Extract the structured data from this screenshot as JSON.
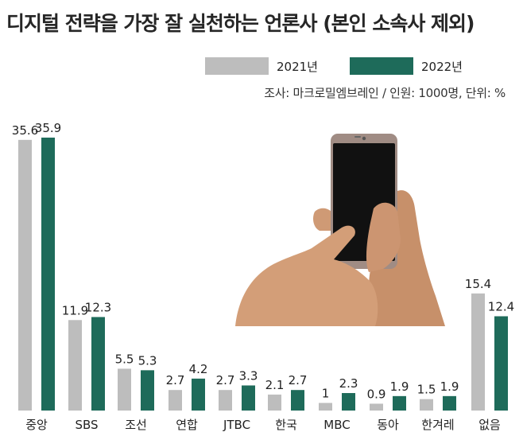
{
  "chart_data": {
    "type": "bar",
    "title": "디지털 전략을 가장 잘 실천하는 언론사 (본인 소속사 제외)",
    "note": "조사: 마크로밀엠브레인 / 인원: 1000명, 단위: %",
    "categories": [
      "중앙",
      "SBS",
      "조선",
      "연합",
      "JTBC",
      "한국",
      "MBC",
      "동아",
      "한겨레",
      "없음"
    ],
    "series": [
      {
        "name": "2021년",
        "color": "#bdbdbd",
        "values": [
          35.6,
          11.9,
          5.5,
          2.7,
          2.7,
          2.1,
          1,
          0.9,
          1.5,
          15.4
        ]
      },
      {
        "name": "2022년",
        "color": "#1e6b5a",
        "values": [
          35.9,
          12.3,
          5.3,
          4.2,
          3.3,
          2.7,
          2.3,
          1.9,
          1.9,
          12.4
        ]
      }
    ],
    "value_labels": [
      [
        "35.6",
        "11.9",
        "5.5",
        "2.7",
        "2.7",
        "2.1",
        "1",
        "0.9",
        "1.5",
        "15.4"
      ],
      [
        "35.9",
        "12.3",
        "5.3",
        "4.2",
        "3.3",
        "2.7",
        "2.3",
        "1.9",
        "1.9",
        "12.4"
      ]
    ],
    "ylim": [
      0,
      36
    ],
    "grid": false,
    "legend_position": "top-right"
  },
  "illustration": {
    "icon": "hand-holding-smartphone-icon"
  }
}
